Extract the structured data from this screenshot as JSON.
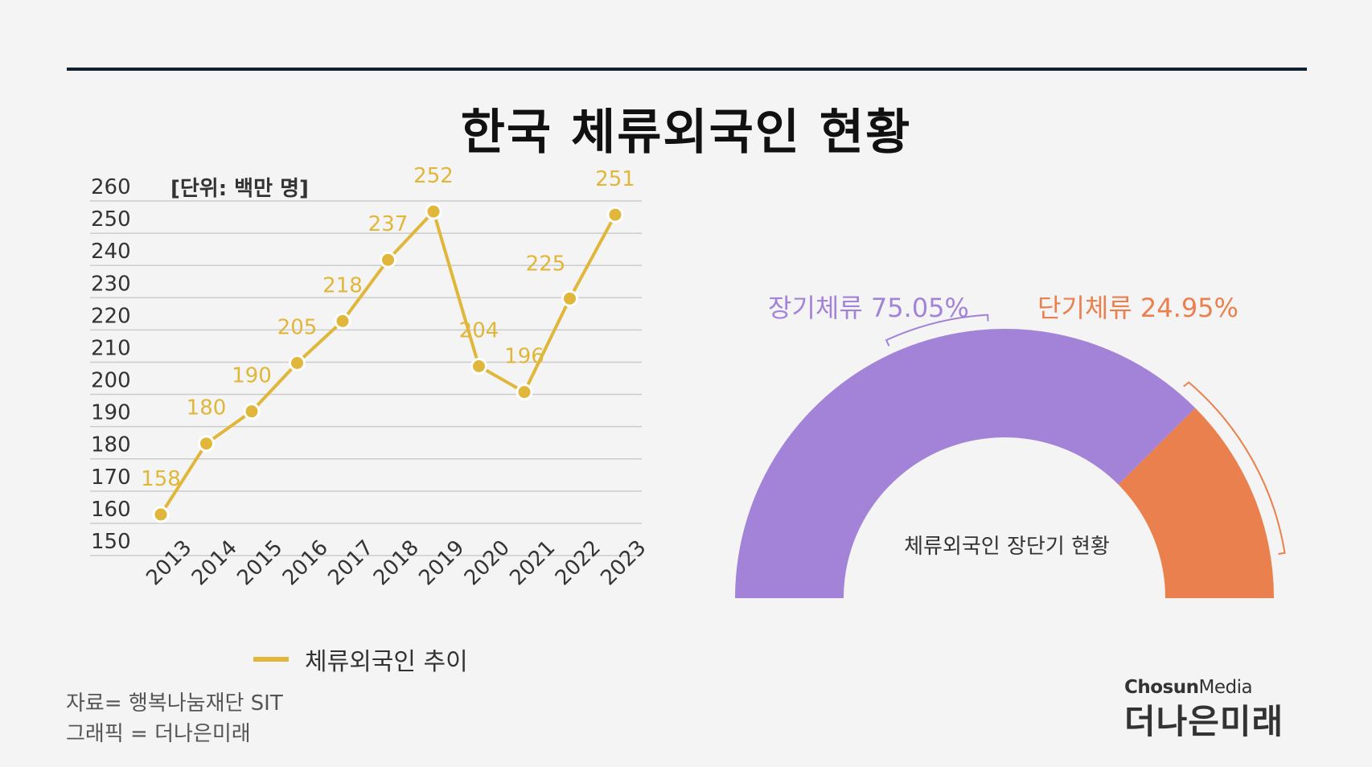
{
  "title": "한국 체류외국인 현황",
  "unit_label": "[단위: 백만 명]",
  "colors": {
    "line": "#e0b73b",
    "long_term": "#a383d8",
    "short_term": "#e9804e",
    "grid": "#cccccc"
  },
  "chart_data": [
    {
      "type": "line",
      "categories": [
        "2013",
        "2014",
        "2015",
        "2016",
        "2017",
        "2018",
        "2019",
        "2020",
        "2021",
        "2022",
        "2023"
      ],
      "series": [
        {
          "name": "체류외국인 추이",
          "values": [
            158,
            180,
            190,
            205,
            218,
            237,
            252,
            204,
            196,
            225,
            251
          ]
        }
      ],
      "data_labels": [
        "158",
        "180",
        "190",
        "205",
        "218",
        "237",
        "252",
        "204",
        "196",
        "225",
        "251"
      ],
      "ylim": [
        150,
        260
      ],
      "yticks": [
        "150",
        "160",
        "170",
        "180",
        "190",
        "200",
        "210",
        "220",
        "230",
        "240",
        "250",
        "260"
      ],
      "grid": true,
      "legend": "bottom"
    },
    {
      "type": "pie",
      "style": "half-donut",
      "segments": [
        {
          "label": "장기체류 75.05%",
          "value": 75.05
        },
        {
          "label": "단기체류 24.95%",
          "value": 24.95
        }
      ],
      "center_label": "체류외국인 장단기 현황"
    }
  ],
  "source": {
    "line1": "자료= 행복나눔재단 SIT",
    "line2": "그래픽 = 더나은미래"
  },
  "brand": {
    "en_bold": "Chosun",
    "en_light": "Media",
    "ko": "더나은미래"
  }
}
